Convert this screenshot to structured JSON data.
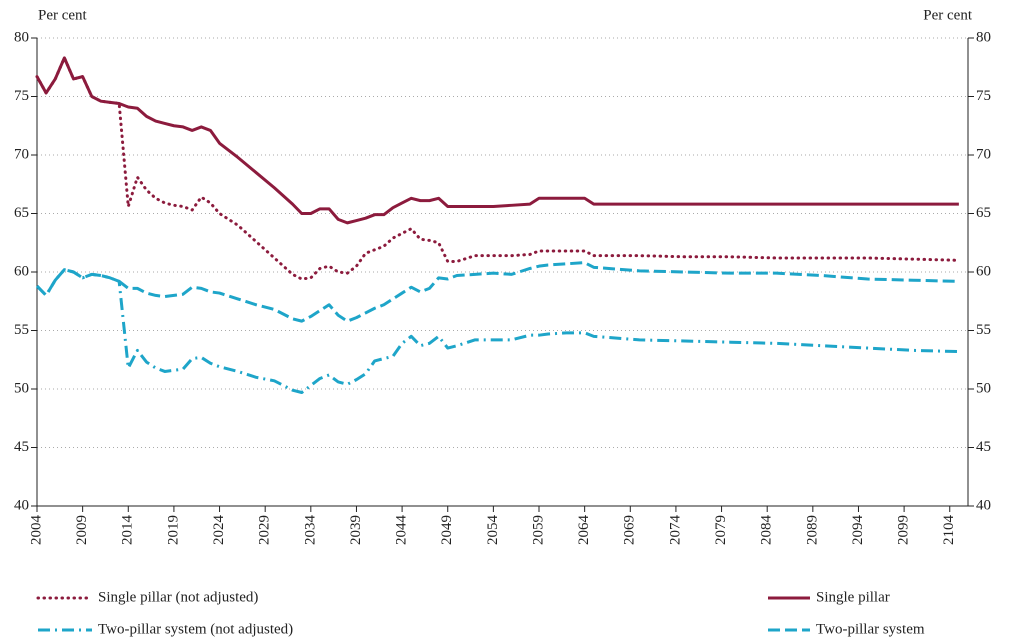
{
  "chart_data": {
    "type": "line",
    "y_label": "Per cent",
    "y2_label": "Per cent",
    "x": [
      2004,
      2005,
      2006,
      2007,
      2008,
      2009,
      2010,
      2011,
      2012,
      2013,
      2014,
      2015,
      2016,
      2017,
      2018,
      2019,
      2020,
      2021,
      2022,
      2023,
      2024,
      2026,
      2028,
      2030,
      2032,
      2033,
      2034,
      2035,
      2036,
      2037,
      2038,
      2039,
      2040,
      2041,
      2042,
      2043,
      2044,
      2045,
      2046,
      2047,
      2048,
      2049,
      2050,
      2052,
      2054,
      2056,
      2058,
      2059,
      2060,
      2062,
      2064,
      2065,
      2070,
      2075,
      2080,
      2085,
      2090,
      2095,
      2100,
      2105
    ],
    "series": [
      {
        "name": "Single pillar (not adjusted)",
        "color": "#8c1b3d",
        "style": "dotted",
        "values": [
          76.7,
          75.3,
          76.5,
          78.3,
          76.5,
          76.7,
          75.0,
          74.6,
          74.5,
          74.4,
          65.6,
          68.1,
          67.0,
          66.3,
          65.9,
          65.7,
          65.6,
          65.3,
          66.4,
          65.9,
          65.0,
          64.0,
          62.6,
          61.2,
          59.8,
          59.4,
          59.5,
          60.3,
          60.5,
          60.0,
          59.9,
          60.5,
          61.6,
          61.9,
          62.2,
          62.9,
          63.3,
          63.7,
          62.8,
          62.7,
          62.5,
          60.9,
          60.9,
          61.4,
          61.4,
          61.4,
          61.5,
          61.8,
          61.8,
          61.8,
          61.8,
          61.4,
          61.4,
          61.3,
          61.3,
          61.2,
          61.2,
          61.2,
          61.1,
          61.0
        ]
      },
      {
        "name": "Single pillar",
        "color": "#8c1b3d",
        "style": "solid",
        "values": [
          76.7,
          75.3,
          76.5,
          78.3,
          76.5,
          76.7,
          75.0,
          74.6,
          74.5,
          74.4,
          74.1,
          74.0,
          73.3,
          72.9,
          72.7,
          72.5,
          72.4,
          72.1,
          72.4,
          72.1,
          71.0,
          69.8,
          68.5,
          67.2,
          65.8,
          65.0,
          65.0,
          65.4,
          65.4,
          64.5,
          64.2,
          64.4,
          64.6,
          64.9,
          64.9,
          65.5,
          65.9,
          66.3,
          66.1,
          66.1,
          66.3,
          65.6,
          65.6,
          65.6,
          65.6,
          65.7,
          65.8,
          66.3,
          66.3,
          66.3,
          66.3,
          65.8,
          65.8,
          65.8,
          65.8,
          65.8,
          65.8,
          65.8,
          65.8,
          65.8
        ]
      },
      {
        "name": "Two-pillar system (not adjusted)",
        "color": "#1ea5c9",
        "style": "dashdot",
        "values": [
          58.8,
          58.0,
          59.3,
          60.2,
          60.0,
          59.5,
          59.8,
          59.7,
          59.5,
          59.2,
          51.8,
          53.3,
          52.3,
          51.8,
          51.5,
          51.6,
          51.7,
          52.6,
          52.7,
          52.2,
          51.9,
          51.5,
          51.0,
          50.7,
          49.9,
          49.7,
          50.3,
          50.9,
          51.2,
          50.6,
          50.4,
          50.8,
          51.3,
          52.4,
          52.6,
          52.8,
          53.9,
          54.5,
          53.7,
          53.9,
          54.5,
          53.5,
          53.7,
          54.2,
          54.2,
          54.2,
          54.6,
          54.6,
          54.7,
          54.8,
          54.8,
          54.5,
          54.2,
          54.1,
          54.0,
          53.9,
          53.7,
          53.5,
          53.3,
          53.2
        ]
      },
      {
        "name": "Two-pillar system",
        "color": "#1ea5c9",
        "style": "dashed",
        "values": [
          58.8,
          58.0,
          59.3,
          60.2,
          60.0,
          59.5,
          59.8,
          59.7,
          59.5,
          59.2,
          58.6,
          58.6,
          58.2,
          58.0,
          57.9,
          58.0,
          58.1,
          58.7,
          58.6,
          58.3,
          58.2,
          57.7,
          57.2,
          56.8,
          56.0,
          55.8,
          56.2,
          56.7,
          57.2,
          56.3,
          55.8,
          56.1,
          56.5,
          56.9,
          57.2,
          57.7,
          58.2,
          58.7,
          58.3,
          58.6,
          59.5,
          59.4,
          59.7,
          59.8,
          59.9,
          59.8,
          60.3,
          60.5,
          60.6,
          60.7,
          60.8,
          60.4,
          60.1,
          60.0,
          59.9,
          59.9,
          59.7,
          59.4,
          59.3,
          59.2
        ]
      }
    ],
    "xlim": [
      2004,
      2106
    ],
    "xticks": [
      2004,
      2009,
      2014,
      2019,
      2024,
      2029,
      2034,
      2039,
      2044,
      2049,
      2054,
      2059,
      2064,
      2069,
      2074,
      2079,
      2084,
      2089,
      2094,
      2099,
      2104
    ],
    "ylim": [
      40,
      80
    ],
    "yticks": [
      40,
      45,
      50,
      55,
      60,
      65,
      70,
      75,
      80
    ],
    "y2lim": [
      40,
      80
    ],
    "y2ticks": [
      40,
      45,
      50,
      55,
      60,
      65,
      70,
      75,
      80
    ],
    "grid": true
  }
}
